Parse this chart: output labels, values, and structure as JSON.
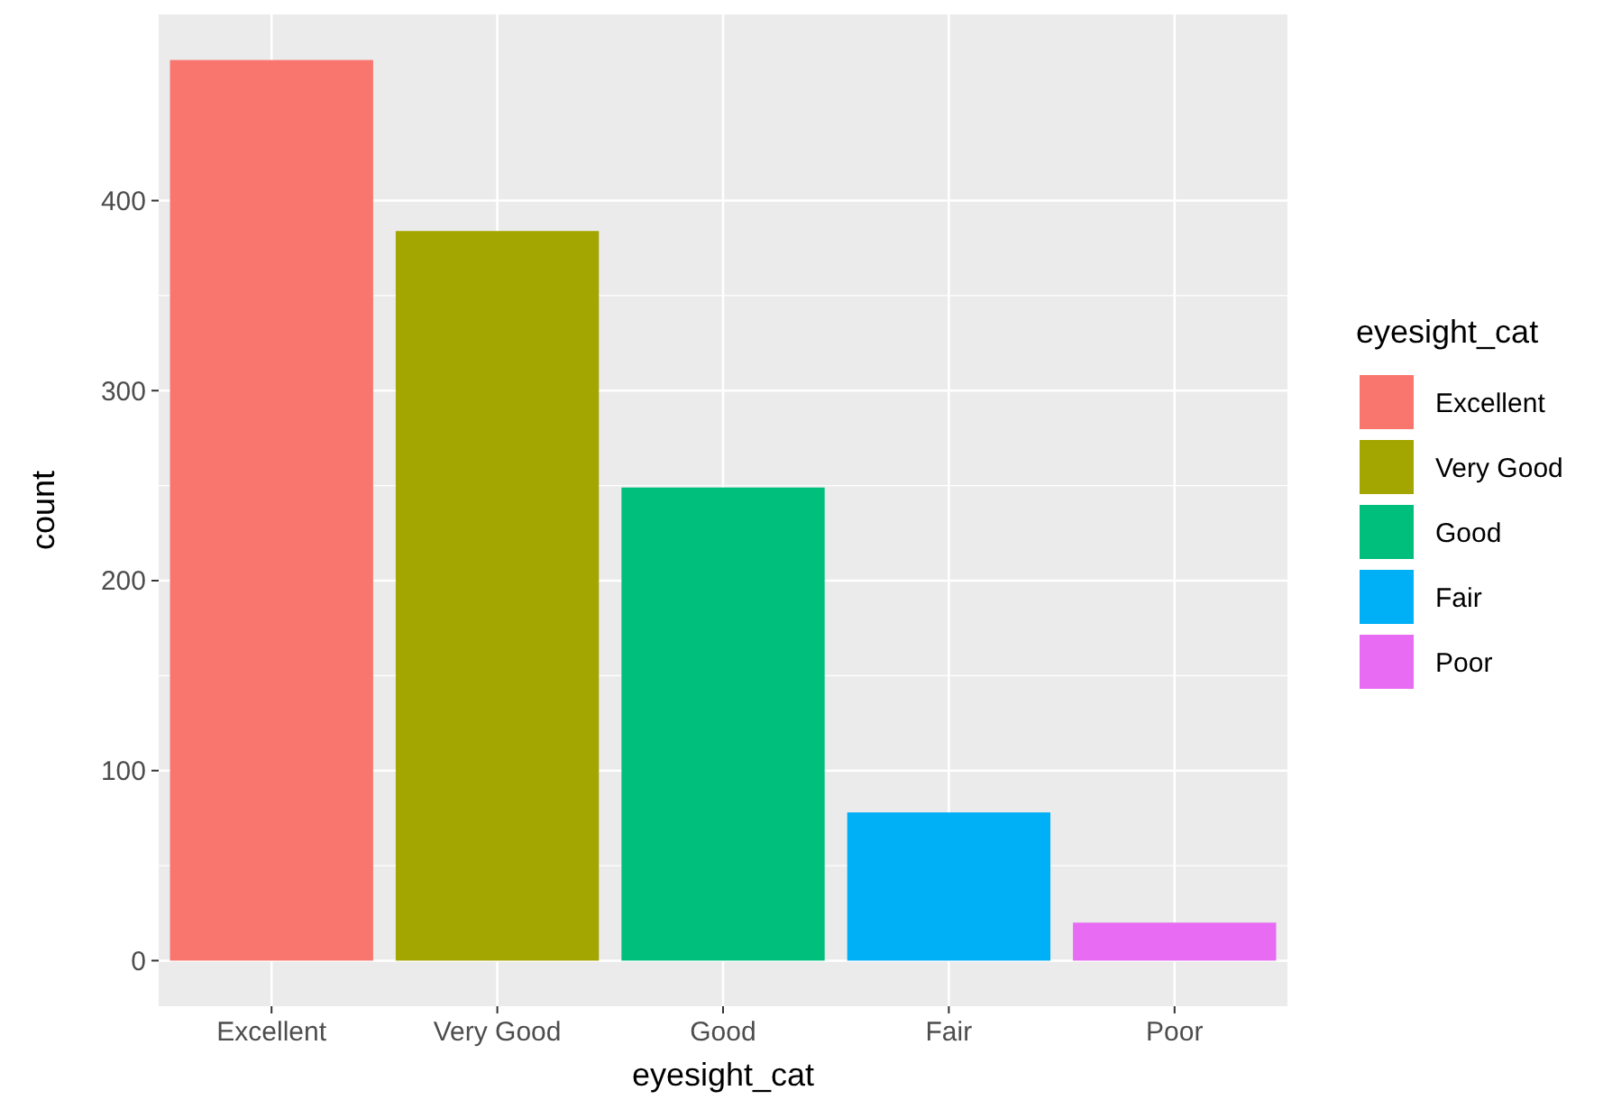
{
  "chart_data": {
    "type": "bar",
    "xlabel": "eyesight_cat",
    "ylabel": "count",
    "legend_title": "eyesight_cat",
    "categories": [
      "Excellent",
      "Very Good",
      "Good",
      "Fair",
      "Poor"
    ],
    "series": [
      {
        "name": "Excellent",
        "color": "#f8766d",
        "values": [
          474,
          null,
          null,
          null,
          null
        ]
      },
      {
        "name": "Very Good",
        "color": "#a3a500",
        "values": [
          null,
          384,
          null,
          null,
          null
        ]
      },
      {
        "name": "Good",
        "color": "#00bf7d",
        "values": [
          null,
          null,
          249,
          null,
          null
        ]
      },
      {
        "name": "Fair",
        "color": "#00b0f6",
        "values": [
          null,
          null,
          null,
          78,
          null
        ]
      },
      {
        "name": "Poor",
        "color": "#e76bf3",
        "values": [
          null,
          null,
          null,
          null,
          20
        ]
      }
    ],
    "stacked": true,
    "ylim": [
      -24,
      498
    ],
    "yticks": [
      0,
      100,
      200,
      300,
      400
    ],
    "grid": true,
    "legend": "right"
  }
}
